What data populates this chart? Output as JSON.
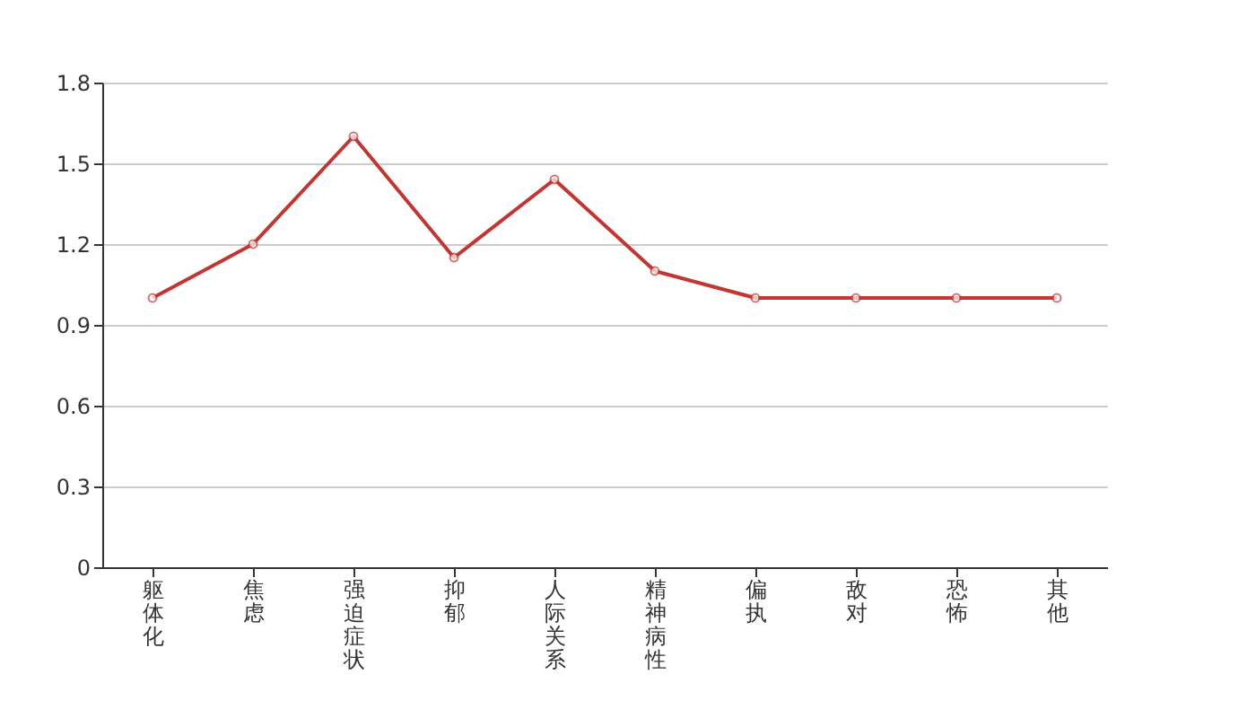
{
  "chart_data": {
    "type": "line",
    "categories": [
      "躯体化",
      "焦虑",
      "强迫症状",
      "抑郁",
      "人际关系",
      "精神病性",
      "偏执",
      "敌对",
      "恐怖",
      "其他"
    ],
    "series": [
      {
        "color": "#c23531",
        "values": [
          1.0,
          1.2,
          1.6,
          1.15,
          1.44,
          1.1,
          1.0,
          1.0,
          1.0,
          1.0
        ]
      }
    ],
    "ylim": [
      0,
      1.8
    ],
    "yticks": [
      0,
      0.3,
      0.6,
      0.9,
      1.2,
      1.5,
      1.8
    ],
    "grid": "y",
    "marker": "circle",
    "line_style": "solid"
  }
}
